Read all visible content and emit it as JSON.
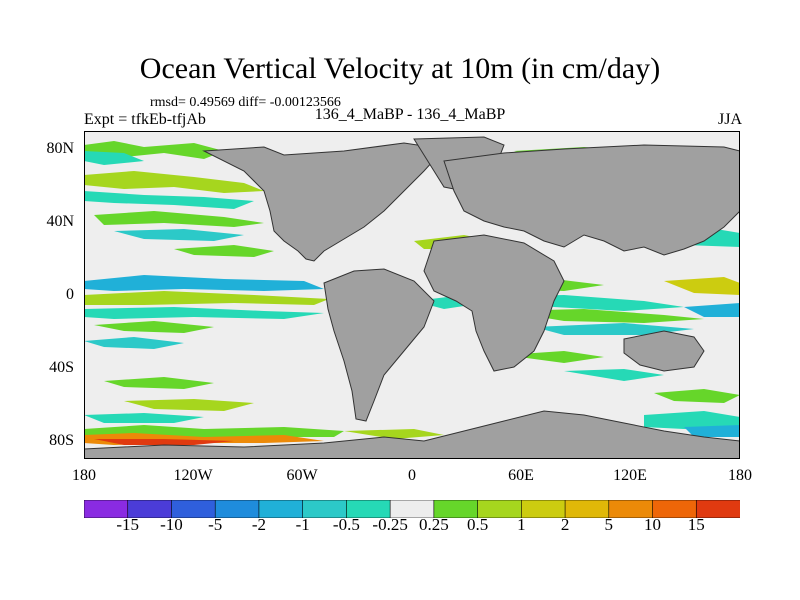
{
  "title": "Ocean Vertical Velocity at 10m (in cm/day)",
  "stats": "rmsd= 0.49569 diff= -0.00123566",
  "expt_label": "Expt = tfkEb-tfjAb",
  "expt_name": "136_4_MaBP - 136_4_MaBP",
  "season": "JJA",
  "map": {
    "projection": "cylindrical-equidistant",
    "lon_range": [
      -180,
      180
    ],
    "lat_range": [
      -90,
      90
    ],
    "land_color": "#a0a0a0",
    "neutral_color": "#eeeeee",
    "y_ticks": [
      "80N",
      "40N",
      "0",
      "40S",
      "80S"
    ],
    "x_ticks": [
      "180",
      "120W",
      "60W",
      "0",
      "60E",
      "120E",
      "180"
    ],
    "field_description": "contoured vertical velocity with land masked"
  },
  "colorbar": {
    "colors": [
      "#8a2be2",
      "#4b3cd8",
      "#2f5fdc",
      "#1f8cdc",
      "#20b0d8",
      "#2cc9c8",
      "#26d9b6",
      "#ededed",
      "#66d62a",
      "#a6d61e",
      "#cccc10",
      "#e0b808",
      "#ec8a08",
      "#ee6608",
      "#e03a10"
    ],
    "labels": [
      "-15",
      "-10",
      "-5",
      "-2",
      "-1",
      "-0.5",
      "-0.25",
      "0.25",
      "0.5",
      "1",
      "2",
      "5",
      "10",
      "15"
    ]
  }
}
